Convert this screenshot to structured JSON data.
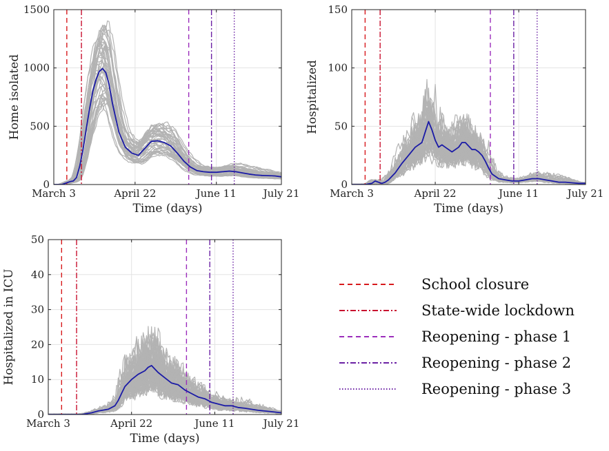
{
  "chart_data": [
    {
      "type": "line",
      "xlabel": "Time (days)",
      "ylabel": "Home isolated",
      "xticks": [
        "March 3",
        "April 22",
        "June 11",
        "July 21"
      ],
      "yticks": [
        0,
        500,
        1000,
        1500
      ],
      "ylim": [
        0,
        1500
      ],
      "grid": true,
      "series": [
        {
          "x": [
            0,
            5,
            9,
            10,
            12,
            14,
            16,
            18,
            20,
            22,
            24,
            26,
            28,
            30,
            32,
            34,
            36,
            40,
            44,
            48,
            52,
            56,
            60,
            64,
            68,
            72,
            76,
            80,
            84,
            88,
            92,
            96,
            100,
            104,
            108,
            112,
            116,
            120,
            124,
            128,
            132,
            136,
            140
          ],
          "values": [
            0,
            0,
            20,
            25,
            30,
            60,
            160,
            300,
            480,
            650,
            800,
            900,
            970,
            995,
            960,
            860,
            700,
            450,
            320,
            270,
            250,
            310,
            370,
            375,
            360,
            330,
            270,
            200,
            150,
            120,
            110,
            105,
            105,
            110,
            115,
            110,
            100,
            90,
            82,
            78,
            76,
            74,
            66
          ]
        }
      ]
    },
    {
      "type": "line",
      "xlabel": "Time (days)",
      "ylabel": "Hospitalized",
      "xticks": [
        "March 3",
        "April 22",
        "June 11",
        "July 21"
      ],
      "yticks": [
        0,
        50,
        100,
        150
      ],
      "ylim": [
        0,
        150
      ],
      "grid": true,
      "series": [
        {
          "x": [
            0,
            8,
            12,
            14,
            16,
            18,
            20,
            22,
            26,
            30,
            34,
            38,
            42,
            44,
            46,
            48,
            50,
            52,
            54,
            56,
            60,
            64,
            66,
            68,
            70,
            72,
            74,
            76,
            78,
            80,
            82,
            84,
            88,
            92,
            96,
            100,
            104,
            108,
            112,
            116,
            120,
            124,
            128,
            132,
            136,
            140
          ],
          "values": [
            0,
            0,
            1,
            3,
            2,
            1,
            2,
            4,
            10,
            18,
            25,
            32,
            36,
            45,
            54,
            47,
            38,
            32,
            34,
            32,
            28,
            32,
            36,
            36,
            33,
            30,
            30,
            28,
            25,
            20,
            14,
            9,
            5,
            4,
            3,
            3,
            4,
            5,
            5,
            4,
            3,
            2,
            2,
            1.5,
            1,
            1
          ]
        }
      ]
    },
    {
      "type": "line",
      "xlabel": "Time (days)",
      "ylabel": "Hospitalized in ICU",
      "xticks": [
        "March 3",
        "April 22",
        "June 11",
        "July 21"
      ],
      "yticks": [
        0,
        10,
        20,
        30,
        40,
        50
      ],
      "ylim": [
        0,
        50
      ],
      "grid": true,
      "series": [
        {
          "x": [
            0,
            12,
            20,
            26,
            30,
            36,
            40,
            42,
            44,
            46,
            50,
            54,
            58,
            60,
            62,
            64,
            66,
            70,
            74,
            78,
            82,
            86,
            90,
            94,
            98,
            102,
            106,
            110,
            114,
            118,
            122,
            126,
            130,
            134,
            140
          ],
          "values": [
            0,
            0,
            0,
            0.5,
            1,
            1.5,
            2.5,
            4,
            6,
            8,
            10,
            11.5,
            12.5,
            13.5,
            14,
            13,
            12,
            10.5,
            9,
            8.5,
            7,
            6,
            5,
            4.5,
            3.5,
            3,
            2.5,
            2.5,
            2,
            1.8,
            1.5,
            1.2,
            1,
            0.8,
            0.5
          ]
        }
      ]
    }
  ],
  "legend": [
    {
      "label": "School closure",
      "color": "#d7191c",
      "dash": "dashed"
    },
    {
      "label": "State-wide lockdown",
      "color": "#c8102e",
      "dash": "dashdot"
    },
    {
      "label": "Reopening - phase 1",
      "color": "#9b2cbb",
      "dash": "dashed"
    },
    {
      "label": "Reopening - phase 2",
      "color": "#6a1fa3",
      "dash": "dashdot"
    },
    {
      "label": "Reopening - phase 3",
      "color": "#6a1fa3",
      "dash": "dotted"
    }
  ],
  "event_days": [
    8,
    17,
    83,
    97,
    111
  ],
  "mean_color": "#1a1aa6",
  "ensemble_color": "#b3b3b3"
}
